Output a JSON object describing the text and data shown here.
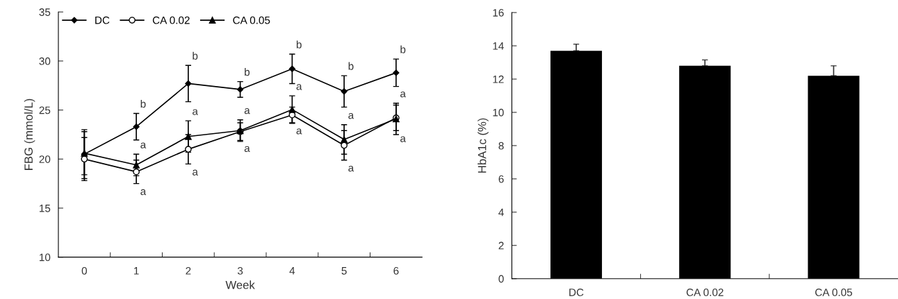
{
  "chart_data": [
    {
      "type": "line",
      "xlabel": "Week",
      "ylabel": "FBG (mmol/L)",
      "categories": [
        "0",
        "1",
        "2",
        "3",
        "4",
        "5",
        "6"
      ],
      "ylim": [
        10,
        35
      ],
      "yticks": [
        10,
        15,
        20,
        25,
        30,
        35
      ],
      "legend": "top left",
      "grid": false,
      "series": [
        {
          "name": "DC",
          "color": "#000000",
          "marker": "diamond",
          "values": [
            20.5,
            23.3,
            27.7,
            27.1,
            29.2,
            26.9,
            28.8
          ],
          "errors": [
            2.5,
            1.35,
            1.85,
            0.8,
            1.5,
            1.6,
            1.4
          ]
        },
        {
          "name": "CA 0.02",
          "color": "#000000",
          "marker": "circle",
          "values": [
            20.0,
            18.7,
            21.0,
            22.8,
            24.5,
            21.4,
            24.2
          ],
          "errors": [
            2.2,
            1.2,
            1.5,
            0.9,
            0.8,
            1.5,
            1.3
          ]
        },
        {
          "name": "CA 0.05",
          "color": "#000000",
          "marker": "triangle",
          "values": [
            20.6,
            19.4,
            22.3,
            22.9,
            25.05,
            22.0,
            24.1
          ],
          "errors": [
            2.2,
            1.1,
            1.6,
            1.1,
            1.4,
            1.5,
            1.6
          ]
        }
      ],
      "annotations": [
        {
          "text": "b",
          "x": "1",
          "y": 23.3
        },
        {
          "text": "b",
          "x": "2",
          "y": 27.7
        },
        {
          "text": "b",
          "x": "3",
          "y": 27.1
        },
        {
          "text": "b",
          "x": "4",
          "y": 29.2
        },
        {
          "text": "b",
          "x": "5",
          "y": 26.9
        },
        {
          "text": "b",
          "x": "6",
          "y": 28.8
        },
        {
          "text": "a",
          "x": "1",
          "y": 19.4
        },
        {
          "text": "a",
          "x": "1",
          "y": 18.7
        },
        {
          "text": "a",
          "x": "2",
          "y": 22.3
        },
        {
          "text": "a",
          "x": "2",
          "y": 21.0
        },
        {
          "text": "a",
          "x": "3",
          "y": 22.9
        },
        {
          "text": "a",
          "x": "3",
          "y": 22.8
        },
        {
          "text": "a",
          "x": "4",
          "y": 25.05
        },
        {
          "text": "a",
          "x": "4",
          "y": 24.5
        },
        {
          "text": "a",
          "x": "5",
          "y": 22.0
        },
        {
          "text": "a",
          "x": "5",
          "y": 21.4
        },
        {
          "text": "a",
          "x": "6",
          "y": 24.1
        },
        {
          "text": "a",
          "x": "6",
          "y": 24.2
        }
      ]
    },
    {
      "type": "bar",
      "ylabel": "HbA1c (%)",
      "categories": [
        "DC",
        "CA 0.02",
        "CA 0.05"
      ],
      "ylim": [
        0,
        16
      ],
      "yticks": [
        0,
        2,
        4,
        6,
        8,
        10,
        12,
        14,
        16
      ],
      "grid": false,
      "values": [
        13.7,
        12.8,
        12.2
      ],
      "errors": [
        0.4,
        0.35,
        0.6
      ],
      "color": "#000000"
    }
  ]
}
